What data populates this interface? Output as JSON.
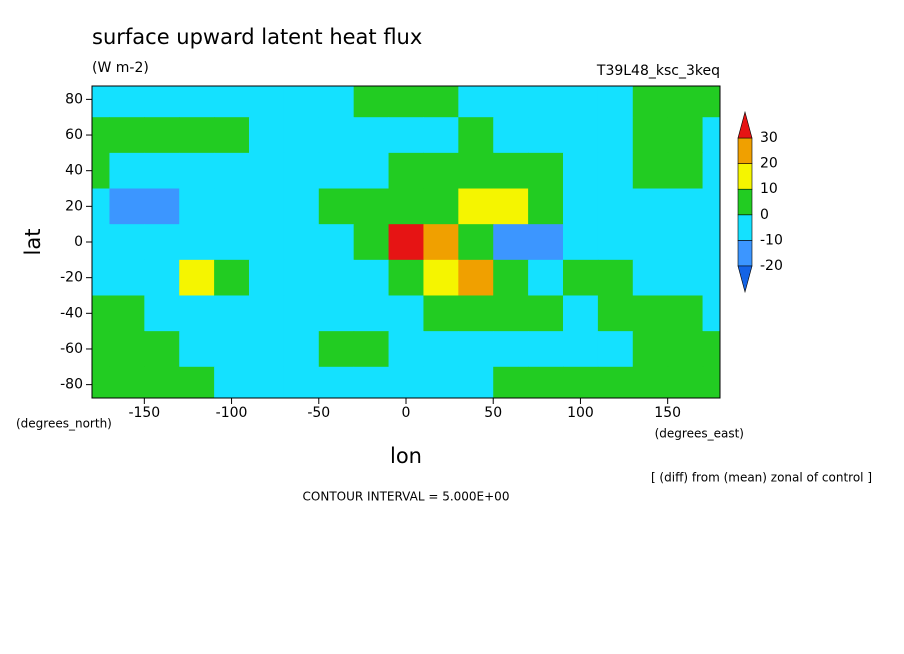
{
  "chart_data": {
    "type": "contour",
    "title": "surface upward latent heat flux",
    "subtitle": "(W m-2)",
    "dataset": "T39L48_ksc_3keq",
    "x_label": "lon",
    "y_label": "lat",
    "x_units": "(degrees_east)",
    "y_units": "(degrees_north)",
    "note": "[ (diff) from (mean) zonal of control ]",
    "contour_interval": "CONTOUR INTERVAL = 5.000E+00",
    "xlim": [
      -180,
      180
    ],
    "ylim": [
      -87.5,
      87.5
    ],
    "xticks": [
      -150,
      -100,
      -50,
      0,
      50,
      100,
      150
    ],
    "yticks": [
      -80,
      -60,
      -40,
      -20,
      0,
      20,
      40,
      60,
      80
    ],
    "x": [
      -180,
      -160,
      -140,
      -120,
      -100,
      -80,
      -60,
      -40,
      -20,
      0,
      20,
      40,
      60,
      80,
      100,
      120,
      140,
      160,
      180
    ],
    "y": [
      80,
      60,
      40,
      20,
      0,
      -20,
      -40,
      -60,
      -80
    ],
    "values": [
      [
        -2,
        -2,
        -2,
        -2,
        -2,
        -2,
        -2,
        -2,
        1,
        1,
        1,
        -2,
        -2,
        -2,
        -2,
        -2,
        1,
        1,
        1
      ],
      [
        2,
        2,
        3,
        2,
        2,
        -2,
        -2,
        -2,
        -2,
        -2,
        -2,
        2,
        -2,
        -2,
        -2,
        -2,
        2,
        2,
        -2
      ],
      [
        2,
        -3,
        -3,
        -3,
        -4,
        -3,
        -3,
        -3,
        -2,
        2,
        4,
        6,
        4,
        2,
        -2,
        -3,
        3,
        2,
        -2
      ],
      [
        -6,
        -12,
        -11,
        -5,
        -3,
        -3,
        -3,
        2,
        3,
        3,
        8,
        18,
        12,
        3,
        -6,
        -8,
        -8,
        -5,
        -4
      ],
      [
        -8,
        -5,
        -4,
        -6,
        -8,
        -4,
        -3,
        -2,
        8,
        35,
        25,
        4,
        -12,
        -14,
        -8,
        -6,
        -4,
        -4,
        -5
      ],
      [
        -3,
        -8,
        -4,
        10,
        6,
        -6,
        -8,
        -4,
        -2,
        4,
        12,
        20,
        6,
        -4,
        8,
        3,
        -10,
        -8,
        -3
      ],
      [
        3,
        2,
        -3,
        -2,
        -3,
        -3,
        -2,
        -3,
        -3,
        -2,
        3,
        4,
        3,
        2,
        -2,
        3,
        3,
        3,
        -2
      ],
      [
        3,
        3,
        2,
        -2,
        -2,
        -2,
        -2,
        3,
        3,
        -2,
        -2,
        -2,
        -2,
        -2,
        -2,
        -2,
        3,
        3,
        3
      ],
      [
        2,
        2,
        2,
        2,
        -2,
        -2,
        -2,
        -2,
        -2,
        -2,
        -2,
        -2,
        2,
        2,
        2,
        2,
        2,
        2,
        2
      ]
    ],
    "levels": [
      -20,
      -10,
      0,
      10,
      20,
      30
    ],
    "colors": [
      "#1464e6",
      "#3c96ff",
      "#14e1ff",
      "#22cc22",
      "#f5f500",
      "#f0a000",
      "#e61414"
    ]
  }
}
